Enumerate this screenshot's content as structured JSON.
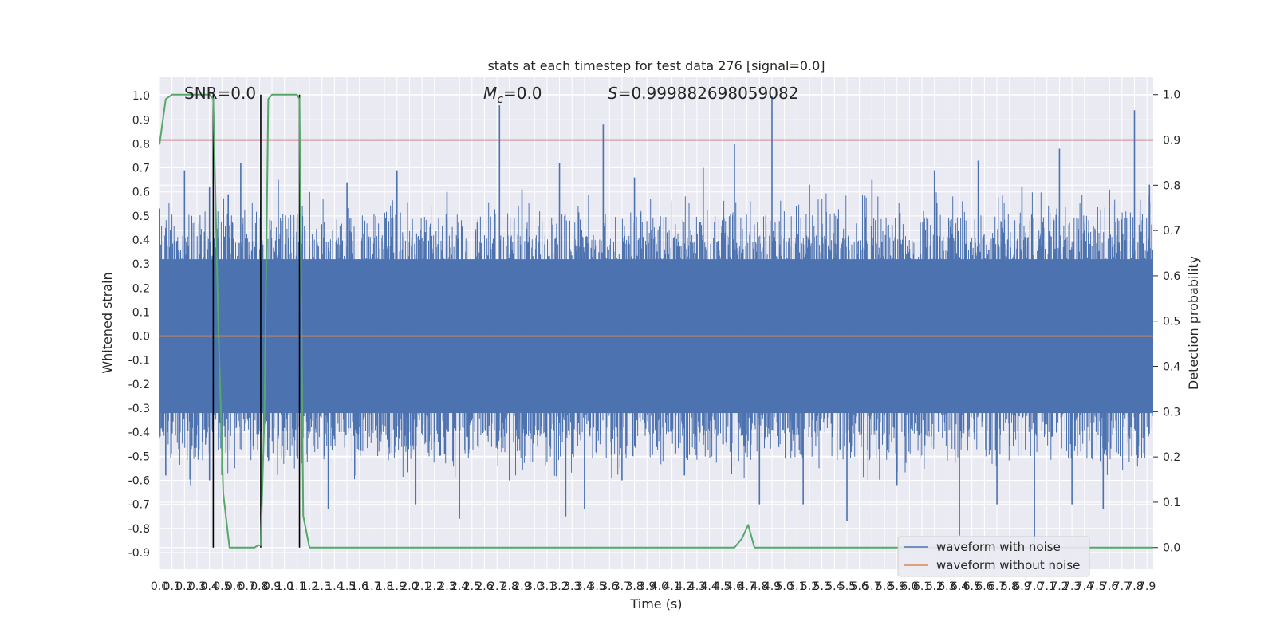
{
  "chart_data": {
    "type": "line",
    "title": "stats at each timestep for test data 276 [signal=0.0]",
    "xlabel": "Time (s)",
    "ylabel_left": "Whitened strain",
    "ylabel_right": "Detection probability",
    "xlim": [
      0.0,
      7.95
    ],
    "ylim_left": [
      -0.97,
      1.08
    ],
    "ylim_right": [
      -0.048,
      1.04
    ],
    "grid": true,
    "legend_position": "lower right",
    "annotations": {
      "snr": "SNR=0.0",
      "mc_symbol": "M",
      "mc_sub": "c",
      "mc_value": "=0.0",
      "s_symbol": "S",
      "s_value": "=0.999882698059082"
    },
    "x_ticks": [
      0.0,
      0.1,
      0.2,
      0.3,
      0.4,
      0.5,
      0.6,
      0.7,
      0.8,
      0.9,
      1.0,
      1.1,
      1.2,
      1.3,
      1.4,
      1.5,
      1.6,
      1.7,
      1.8,
      1.9,
      2.0,
      2.1,
      2.2,
      2.3,
      2.4,
      2.5,
      2.6,
      2.7,
      2.8,
      2.9,
      3.0,
      3.1,
      3.2,
      3.3,
      3.4,
      3.5,
      3.6,
      3.7,
      3.8,
      3.9,
      4.0,
      4.1,
      4.2,
      4.3,
      4.4,
      4.5,
      4.6,
      4.7,
      4.8,
      4.9,
      5.0,
      5.1,
      5.2,
      5.3,
      5.4,
      5.5,
      5.6,
      5.7,
      5.8,
      5.9,
      6.0,
      6.1,
      6.2,
      6.3,
      6.4,
      6.5,
      6.6,
      6.7,
      6.8,
      6.9,
      7.0,
      7.1,
      7.2,
      7.3,
      7.4,
      7.5,
      7.6,
      7.7,
      7.8,
      7.9
    ],
    "y_ticks_left": [
      -0.9,
      -0.8,
      -0.7,
      -0.6,
      -0.5,
      -0.4,
      -0.3,
      -0.2,
      -0.1,
      0.0,
      0.1,
      0.2,
      0.3,
      0.4,
      0.5,
      0.6,
      0.7,
      0.8,
      0.9,
      1.0
    ],
    "y_ticks_right": [
      0.0,
      0.1,
      0.2,
      0.3,
      0.4,
      0.5,
      0.6,
      0.7,
      0.8,
      0.9,
      1.0
    ],
    "threshold": 0.9,
    "detection_markers_x": [
      0.43,
      0.81,
      1.12
    ],
    "series": [
      {
        "name": "waveform with noise",
        "color": "#4c72b0",
        "axis": "left",
        "spikes_high": [
          [
            0.05,
            0.45
          ],
          [
            0.2,
            0.69
          ],
          [
            0.4,
            0.62
          ],
          [
            0.55,
            0.59
          ],
          [
            0.65,
            0.72
          ],
          [
            0.95,
            0.65
          ],
          [
            1.2,
            0.6
          ],
          [
            1.5,
            0.64
          ],
          [
            1.9,
            0.69
          ],
          [
            2.3,
            0.6
          ],
          [
            2.72,
            0.96
          ],
          [
            2.9,
            0.61
          ],
          [
            3.2,
            0.72
          ],
          [
            3.55,
            0.88
          ],
          [
            3.8,
            0.66
          ],
          [
            4.35,
            0.7
          ],
          [
            4.6,
            0.8
          ],
          [
            4.9,
            1.0
          ],
          [
            5.2,
            0.63
          ],
          [
            5.7,
            0.65
          ],
          [
            6.2,
            0.69
          ],
          [
            6.55,
            0.73
          ],
          [
            6.9,
            0.62
          ],
          [
            7.2,
            0.78
          ],
          [
            7.6,
            0.61
          ],
          [
            7.8,
            0.94
          ],
          [
            7.92,
            0.63
          ]
        ],
        "spikes_low": [
          [
            0.05,
            -0.58
          ],
          [
            0.25,
            -0.62
          ],
          [
            0.4,
            -0.6
          ],
          [
            0.6,
            -0.55
          ],
          [
            1.1,
            -0.5
          ],
          [
            1.35,
            -0.72
          ],
          [
            2.05,
            -0.7
          ],
          [
            2.4,
            -0.76
          ],
          [
            2.8,
            -0.6
          ],
          [
            3.25,
            -0.75
          ],
          [
            3.4,
            -0.72
          ],
          [
            3.7,
            -0.6
          ],
          [
            4.2,
            -0.58
          ],
          [
            4.8,
            -0.7
          ],
          [
            5.15,
            -0.7
          ],
          [
            5.5,
            -0.77
          ],
          [
            5.9,
            -0.62
          ],
          [
            6.4,
            -0.83
          ],
          [
            6.7,
            -0.7
          ],
          [
            7.0,
            -0.87
          ],
          [
            7.3,
            -0.7
          ],
          [
            7.55,
            -0.72
          ]
        ],
        "core_band": [
          -0.32,
          0.32
        ]
      },
      {
        "name": "waveform without noise",
        "color": "#dd8452",
        "axis": "left",
        "x": [
          0.0,
          7.95
        ],
        "y": [
          0.0,
          0.0
        ]
      },
      {
        "name": "",
        "color": "#55a868",
        "axis": "right",
        "x": [
          0.0,
          0.05,
          0.1,
          0.15,
          0.2,
          0.25,
          0.3,
          0.35,
          0.4,
          0.43,
          0.47,
          0.51,
          0.56,
          0.61,
          0.66,
          0.71,
          0.76,
          0.79,
          0.81,
          0.84,
          0.87,
          0.9,
          0.95,
          1.0,
          1.05,
          1.1,
          1.12,
          1.15,
          1.2,
          1.25,
          1.3,
          1.4,
          1.6,
          2.0,
          3.0,
          4.0,
          4.5,
          4.6,
          4.66,
          4.71,
          4.76,
          4.8,
          5.0,
          6.0,
          7.0,
          7.95
        ],
        "y": [
          0.89,
          0.99,
          1.0,
          1.0,
          1.0,
          1.0,
          1.0,
          1.0,
          1.0,
          0.99,
          0.5,
          0.12,
          0.0,
          0.0,
          0.0,
          0.0,
          0.0,
          0.005,
          0.005,
          0.3,
          0.99,
          1.0,
          1.0,
          1.0,
          1.0,
          1.0,
          0.99,
          0.07,
          0.0,
          0.0,
          0.0,
          0.0,
          0.0,
          0.0,
          0.0,
          0.0,
          0.0,
          0.0,
          0.02,
          0.05,
          0.0,
          0.0,
          0.0,
          0.0,
          0.0,
          0.0
        ]
      }
    ]
  }
}
